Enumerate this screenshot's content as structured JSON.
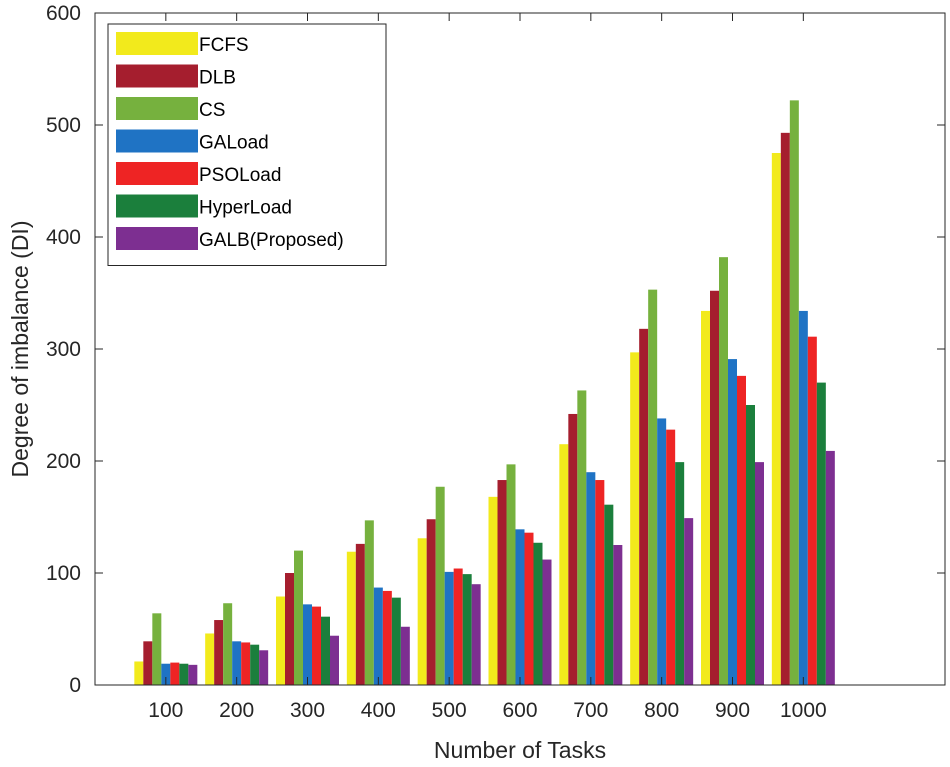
{
  "chart_data": {
    "type": "bar",
    "title": "",
    "xlabel": "Number of Tasks",
    "ylabel": "Degree of imbalance (DI)",
    "categories": [
      "100",
      "200",
      "300",
      "400",
      "500",
      "600",
      "700",
      "800",
      "900",
      "1000"
    ],
    "ylim": [
      0,
      600
    ],
    "yticks": [
      "0",
      "100",
      "200",
      "300",
      "400",
      "500",
      "600"
    ],
    "x_slots": 12,
    "legend_position": "top-left",
    "series": [
      {
        "name": "FCFS",
        "color": "#F2EA1C",
        "values": [
          21,
          46,
          79,
          119,
          131,
          168,
          215,
          297,
          334,
          475
        ]
      },
      {
        "name": "DLB",
        "color": "#A51E2E",
        "values": [
          39,
          58,
          100,
          126,
          148,
          183,
          242,
          318,
          352,
          493
        ]
      },
      {
        "name": "CS",
        "color": "#76B13E",
        "values": [
          64,
          73,
          120,
          147,
          177,
          197,
          263,
          353,
          382,
          522
        ]
      },
      {
        "name": "GALoad",
        "color": "#1F73C4",
        "values": [
          19,
          39,
          72,
          87,
          101,
          139,
          190,
          238,
          291,
          334
        ]
      },
      {
        "name": "PSOLoad",
        "color": "#EE2424",
        "values": [
          20,
          38,
          70,
          84,
          104,
          136,
          183,
          228,
          276,
          311
        ]
      },
      {
        "name": "HyperLoad",
        "color": "#1B7F3C",
        "values": [
          19,
          36,
          61,
          78,
          99,
          127,
          161,
          199,
          250,
          270
        ]
      },
      {
        "name": "GALB(Proposed)",
        "color": "#7D2F91",
        "values": [
          18,
          31,
          44,
          52,
          90,
          112,
          125,
          149,
          199,
          209
        ]
      }
    ]
  }
}
